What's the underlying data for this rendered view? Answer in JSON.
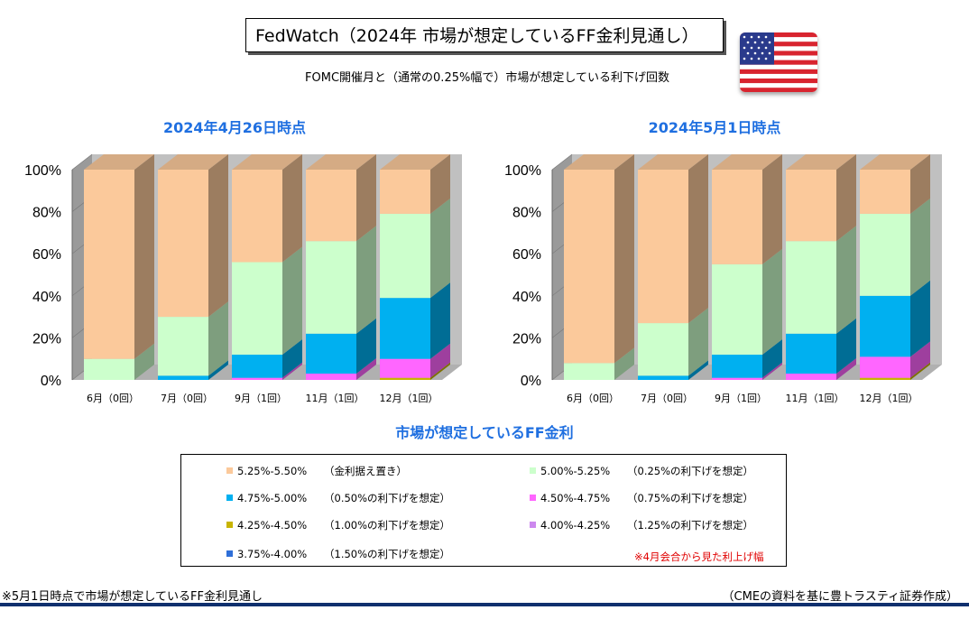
{
  "header": {
    "title": "FedWatch（2024年 市場が想定しているFF金利見通し）",
    "subtitle": "FOMC開催月と（通常の0.25%幅で）市場が想定している利下げ回数",
    "flag_icon": "us-flag-icon"
  },
  "chart_data": [
    {
      "type": "bar",
      "stacked": true,
      "title": "2024年4月26日時点",
      "categories": [
        "6月（0回）",
        "7月（0回）",
        "9月（1回）",
        "11月（1回）",
        "12月（1回）"
      ],
      "yticks": [
        "0%",
        "20%",
        "40%",
        "60%",
        "80%",
        "100%"
      ],
      "ylim": [
        0,
        100
      ],
      "series": [
        {
          "name": "3.75%-4.00%",
          "values": [
            0,
            0,
            0,
            0,
            0
          ]
        },
        {
          "name": "4.00%-4.25%",
          "values": [
            0,
            0,
            0,
            0,
            0
          ]
        },
        {
          "name": "4.25%-4.50%",
          "values": [
            0,
            0,
            0,
            0,
            1
          ]
        },
        {
          "name": "4.50%-4.75%",
          "values": [
            0,
            0,
            1,
            3,
            9
          ]
        },
        {
          "name": "4.75%-5.00%",
          "values": [
            0,
            2,
            11,
            19,
            29
          ]
        },
        {
          "name": "5.00%-5.25%",
          "values": [
            10,
            28,
            44,
            44,
            40
          ]
        },
        {
          "name": "5.25%-5.50%",
          "values": [
            90,
            70,
            44,
            34,
            21
          ]
        }
      ]
    },
    {
      "type": "bar",
      "stacked": true,
      "title": "2024年5月1日時点",
      "categories": [
        "6月（0回）",
        "7月（0回）",
        "9月（1回）",
        "11月（1回）",
        "12月（1回）"
      ],
      "yticks": [
        "0%",
        "20%",
        "40%",
        "60%",
        "80%",
        "100%"
      ],
      "ylim": [
        0,
        100
      ],
      "series": [
        {
          "name": "3.75%-4.00%",
          "values": [
            0,
            0,
            0,
            0,
            0
          ]
        },
        {
          "name": "4.00%-4.25%",
          "values": [
            0,
            0,
            0,
            0,
            0
          ]
        },
        {
          "name": "4.25%-4.50%",
          "values": [
            0,
            0,
            0,
            0,
            1
          ]
        },
        {
          "name": "4.50%-4.75%",
          "values": [
            0,
            0,
            1,
            3,
            10
          ]
        },
        {
          "name": "4.75%-5.00%",
          "values": [
            0,
            2,
            11,
            19,
            29
          ]
        },
        {
          "name": "5.00%-5.25%",
          "values": [
            8,
            25,
            43,
            44,
            39
          ]
        },
        {
          "name": "5.25%-5.50%",
          "values": [
            92,
            73,
            45,
            34,
            21
          ]
        }
      ]
    }
  ],
  "legend": {
    "title": "市場が想定しているFF金利",
    "items": [
      {
        "range": "5.25%-5.50%",
        "desc": "（金利据え置き）",
        "color": "#fbc99b"
      },
      {
        "range": "5.00%-5.25%",
        "desc": "（0.25%の利下げを想定）",
        "color": "#ccffcc"
      },
      {
        "range": "4.75%-5.00%",
        "desc": "（0.50%の利下げを想定）",
        "color": "#00b0f0"
      },
      {
        "range": "4.50%-4.75%",
        "desc": "（0.75%の利下げを想定）",
        "color": "#ff66ff"
      },
      {
        "range": "4.25%-4.50%",
        "desc": "（1.00%の利下げを想定）",
        "color": "#c8b400"
      },
      {
        "range": "4.00%-4.25%",
        "desc": "（1.25%の利下げを想定）",
        "color": "#cc88ee"
      },
      {
        "range": "3.75%-4.00%",
        "desc": "（1.50%の利下げを想定）",
        "color": "#2f6fd8"
      }
    ],
    "note": "※4月会合から見た利上げ幅"
  },
  "footer": {
    "left": "※5月1日時点で市場が想定しているFF金利見通し",
    "right": "（CMEの資料を基に豊トラスティ証券作成）"
  },
  "colors": {
    "accent_title": "#1f6fe0",
    "rule": "#10306e",
    "wall": "#c0c0c0",
    "series": {
      "3.75%-4.00%": "#2f6fd8",
      "4.00%-4.25%": "#cc88ee",
      "4.25%-4.50%": "#c8b400",
      "4.50%-4.75%": "#ff66ff",
      "4.75%-5.00%": "#00b0f0",
      "5.00%-5.25%": "#ccffcc",
      "5.25%-5.50%": "#fbc99b"
    }
  }
}
